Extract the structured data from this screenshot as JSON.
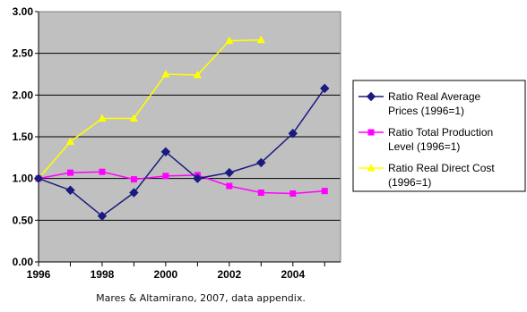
{
  "chart_data": {
    "type": "line",
    "title": "",
    "xlabel": "",
    "ylabel": "",
    "x": [
      1996,
      1997,
      1998,
      1999,
      2000,
      2001,
      2002,
      2003,
      2004,
      2005
    ],
    "xlim": [
      1996,
      2005.5
    ],
    "x_ticks": [
      "1996",
      "1998",
      "2000",
      "2002",
      "2004"
    ],
    "ylim": [
      0,
      3
    ],
    "y_ticks": [
      "0.00",
      "0.50",
      "1.00",
      "1.50",
      "2.00",
      "2.50",
      "3.00"
    ],
    "grid": "horizontal",
    "plot_background": "#c0c0c0",
    "legend_position": "right",
    "series": [
      {
        "name": "Ratio Real Average Prices (1996=1)",
        "name_lines": [
          "Ratio Real Average",
          "Prices (1996=1)"
        ],
        "color": "#1a1a80",
        "marker": "diamond",
        "values": [
          1.0,
          0.86,
          0.55,
          0.83,
          1.32,
          1.0,
          1.07,
          1.19,
          1.54,
          2.08
        ]
      },
      {
        "name": "Ratio Total Production Level (1996=1)",
        "name_lines": [
          "Ratio Total Production",
          "Level (1996=1)"
        ],
        "color": "#ff00ff",
        "marker": "square",
        "values": [
          1.0,
          1.07,
          1.08,
          0.99,
          1.03,
          1.04,
          0.91,
          0.83,
          0.82,
          0.85
        ]
      },
      {
        "name": "Ratio Real Direct Cost (1996=1)",
        "name_lines": [
          "Ratio Real Direct Cost",
          "(1996=1)"
        ],
        "color": "#ffff00",
        "marker": "triangle",
        "values": [
          1.0,
          1.44,
          1.72,
          1.72,
          2.25,
          2.24,
          2.65,
          2.66,
          null,
          null
        ]
      }
    ]
  },
  "caption": "Mares & Altamirano, 2007, data appendix."
}
